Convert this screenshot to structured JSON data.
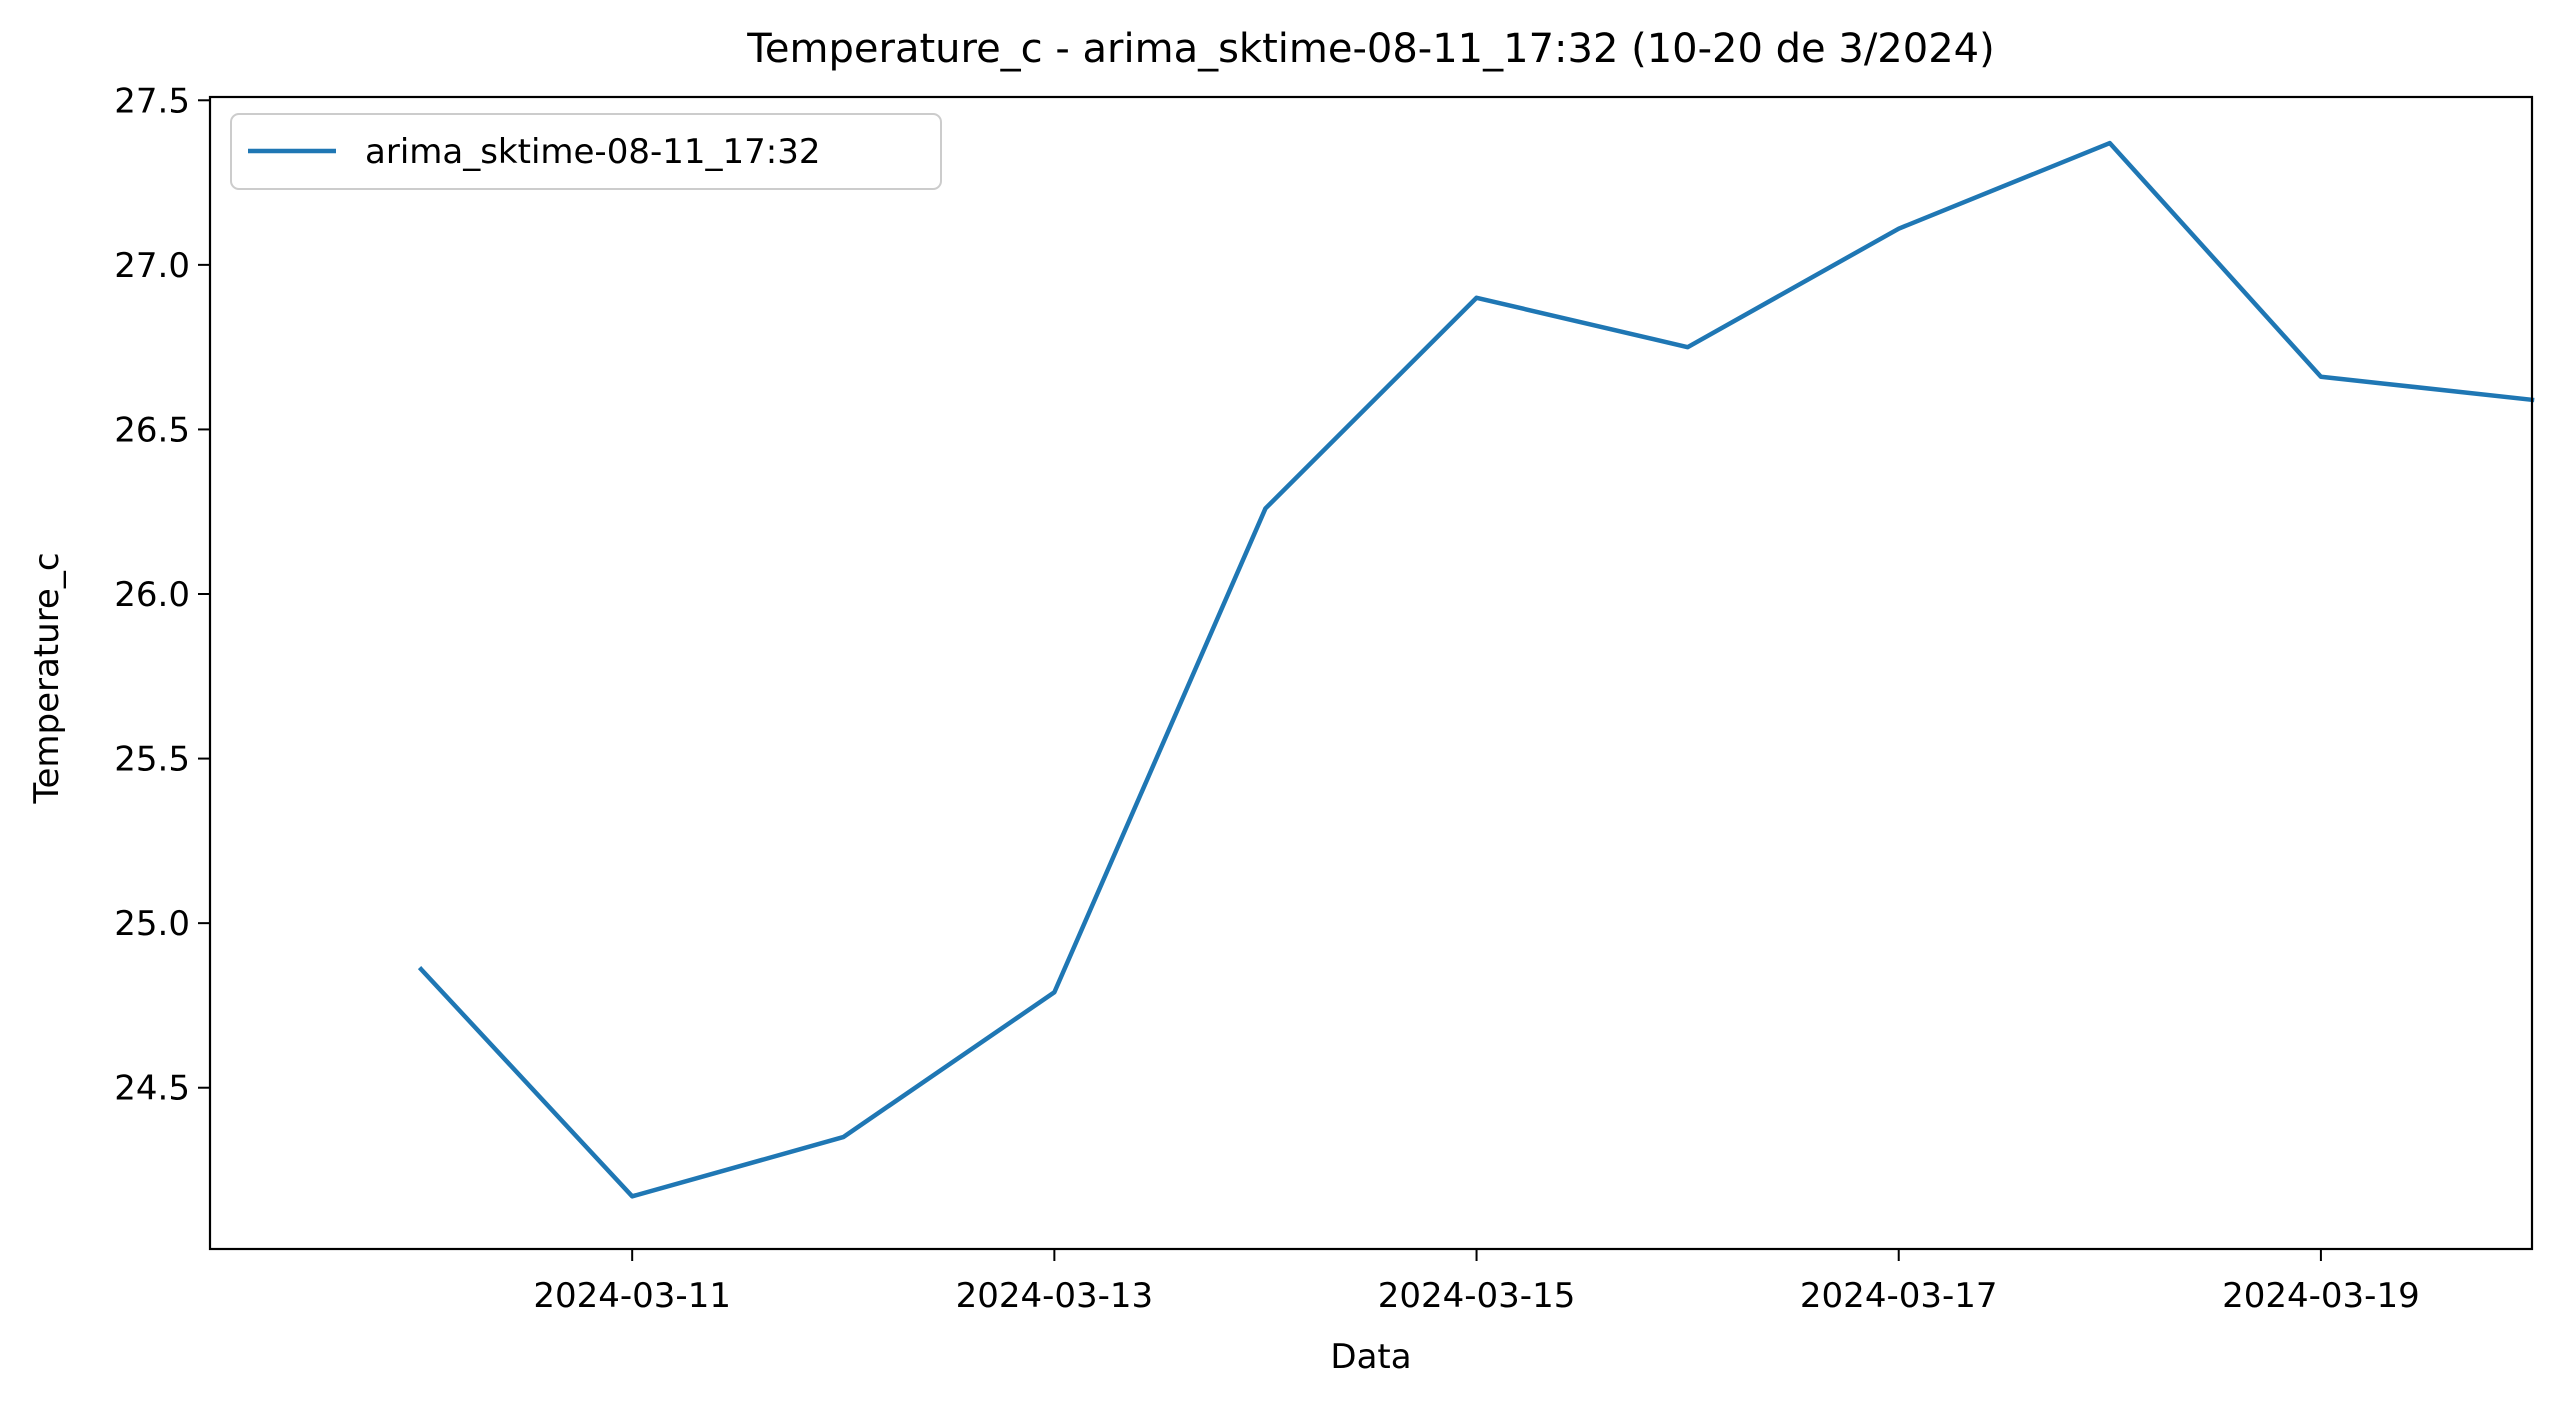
{
  "chart_data": {
    "type": "line",
    "title": "Temperature_c - arima_sktime-08-11_17:32 (10-20 de 3/2024)",
    "xlabel": "Data",
    "ylabel": "Temperature_c",
    "x": [
      "2024-03-10",
      "2024-03-11",
      "2024-03-12",
      "2024-03-13",
      "2024-03-14",
      "2024-03-15",
      "2024-03-16",
      "2024-03-17",
      "2024-03-18",
      "2024-03-19",
      "2024-03-20"
    ],
    "series": [
      {
        "name": "arima_sktime-08-11_17:32",
        "color": "#1f77b4",
        "values": [
          24.86,
          24.17,
          24.35,
          24.79,
          26.26,
          26.9,
          26.75,
          27.11,
          27.37,
          26.66,
          26.59
        ]
      }
    ],
    "x_ticks": [
      "2024-03-11",
      "2024-03-13",
      "2024-03-15",
      "2024-03-17",
      "2024-03-19"
    ],
    "y_ticks": [
      24.5,
      25.0,
      25.5,
      26.0,
      26.5,
      27.0,
      27.5
    ],
    "y_tick_labels": [
      "24.5",
      "25.0",
      "25.5",
      "26.0",
      "26.5",
      "27.0",
      "27.5"
    ],
    "xlim": [
      "2024-03-09",
      "2024-03-20"
    ],
    "ylim": [
      24.01,
      27.51
    ],
    "grid": false,
    "legend_position": "top-left"
  }
}
